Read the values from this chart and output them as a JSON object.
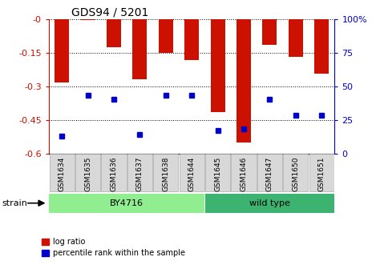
{
  "title": "GDS94 / 5201",
  "samples": [
    "GSM1634",
    "GSM1635",
    "GSM1636",
    "GSM1637",
    "GSM1638",
    "GSM1644",
    "GSM1645",
    "GSM1646",
    "GSM1647",
    "GSM1650",
    "GSM1651"
  ],
  "log_ratio": [
    -0.285,
    -0.005,
    -0.125,
    -0.27,
    -0.15,
    -0.185,
    -0.415,
    -0.55,
    -0.115,
    -0.17,
    -0.245
  ],
  "percentile_rank": [
    13,
    43,
    40,
    14,
    43,
    43,
    17,
    18,
    40,
    28,
    28
  ],
  "groups": [
    {
      "name": "BY4716",
      "indices": [
        0,
        1,
        2,
        3,
        4,
        5
      ],
      "color": "#90ee90"
    },
    {
      "name": "wild type",
      "indices": [
        6,
        7,
        8,
        9,
        10
      ],
      "color": "#3cb371"
    }
  ],
  "bar_color": "#cc1100",
  "dot_color": "#0000cc",
  "ylim_left": [
    -0.6,
    0.0
  ],
  "ylim_right": [
    0,
    100
  ],
  "yticks_left": [
    -0.6,
    -0.45,
    -0.3,
    -0.15,
    0.0
  ],
  "ytick_labels_left": [
    "-0.6",
    "-0.45",
    "-0.3",
    "-0.15",
    "-0"
  ],
  "yticks_right": [
    0,
    25,
    50,
    75,
    100
  ],
  "ytick_labels_right": [
    "0",
    "25",
    "50",
    "75",
    "100%"
  ],
  "legend_items": [
    {
      "label": "log ratio",
      "color": "#cc1100"
    },
    {
      "label": "percentile rank within the sample",
      "color": "#0000cc"
    }
  ],
  "grid_color": "black",
  "background_color": "white",
  "strain_label": "strain",
  "bar_width": 0.55,
  "dot_size": 4
}
